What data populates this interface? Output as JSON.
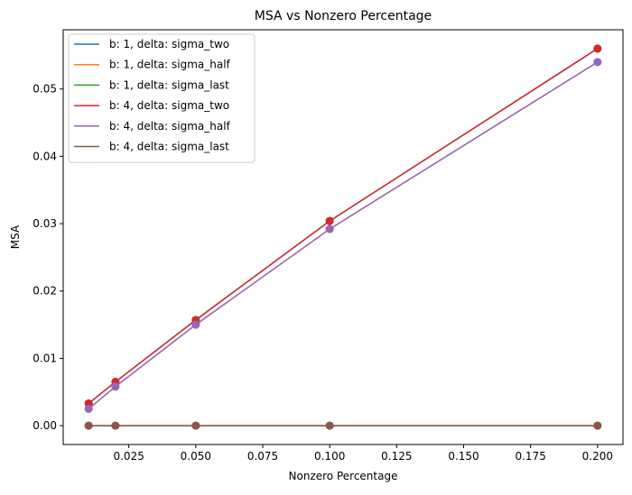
{
  "chart_data": {
    "type": "line",
    "title": "MSA vs Nonzero Percentage",
    "xlabel": "Nonzero Percentage",
    "ylabel": "MSA",
    "xlim": [
      0.0005,
      0.2095
    ],
    "ylim": [
      -0.0028,
      0.0588
    ],
    "xticks": [
      0.025,
      0.05,
      0.075,
      0.1,
      0.125,
      0.15,
      0.175,
      0.2
    ],
    "xtick_labels": [
      "0.025",
      "0.050",
      "0.075",
      "0.100",
      "0.125",
      "0.150",
      "0.175",
      "0.200"
    ],
    "yticks": [
      0.0,
      0.01,
      0.02,
      0.03,
      0.04,
      0.05
    ],
    "ytick_labels": [
      "0.00",
      "0.01",
      "0.02",
      "0.03",
      "0.04",
      "0.05"
    ],
    "grid": false,
    "legend_position": "upper-left",
    "x": [
      0.01,
      0.02,
      0.05,
      0.1,
      0.2
    ],
    "series": [
      {
        "name": "b: 1, delta: sigma_two",
        "color": "#1f77b4",
        "values": [
          0.0033,
          0.0065,
          0.0157,
          0.0304,
          0.056
        ]
      },
      {
        "name": "b: 1, delta: sigma_half",
        "color": "#ff7f0e",
        "values": [
          0.0025,
          0.0058,
          0.015,
          0.0292,
          0.054
        ]
      },
      {
        "name": "b: 1, delta: sigma_last",
        "color": "#2ca02c",
        "values": [
          0.0,
          0.0,
          0.0,
          0.0,
          0.0
        ]
      },
      {
        "name": "b: 4, delta: sigma_two",
        "color": "#d62728",
        "values": [
          0.0033,
          0.0065,
          0.0157,
          0.0304,
          0.056
        ]
      },
      {
        "name": "b: 4, delta: sigma_half",
        "color": "#9467bd",
        "values": [
          0.0025,
          0.0058,
          0.015,
          0.0292,
          0.054
        ]
      },
      {
        "name": "b: 4, delta: sigma_last",
        "color": "#8c564b",
        "values": [
          0.0,
          0.0,
          0.0,
          0.0,
          0.0
        ]
      }
    ]
  }
}
